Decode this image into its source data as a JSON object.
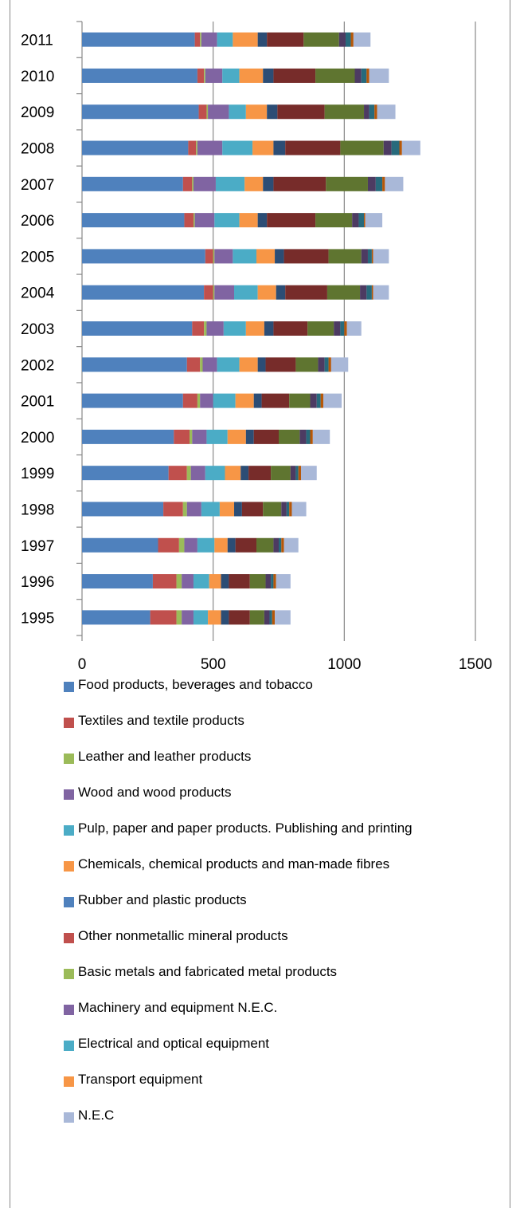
{
  "chart_data": {
    "type": "bar",
    "orientation": "horizontal",
    "stacked": true,
    "categories": [
      "2011",
      "2010",
      "2009",
      "2008",
      "2007",
      "2006",
      "2005",
      "2004",
      "2003",
      "2002",
      "2001",
      "2000",
      "1999",
      "1998",
      "1997",
      "1996",
      "1995"
    ],
    "xlim": [
      0,
      1500
    ],
    "xticks": [
      "0",
      "500",
      "1000",
      "1500"
    ],
    "grid": "vertical",
    "legend": "bottom",
    "series": [
      {
        "name": "Food products, beverages and tobacco",
        "color": "#4F81BD",
        "values": [
          430,
          440,
          445,
          405,
          385,
          390,
          470,
          465,
          420,
          400,
          385,
          350,
          330,
          310,
          290,
          270,
          260
        ]
      },
      {
        "name": "Textiles and textile products",
        "color": "#C0504D",
        "values": [
          20,
          25,
          30,
          30,
          35,
          35,
          30,
          35,
          45,
          50,
          55,
          60,
          70,
          75,
          80,
          90,
          100
        ]
      },
      {
        "name": "Leather and leather products",
        "color": "#9BBB59",
        "values": [
          5,
          5,
          5,
          5,
          5,
          5,
          5,
          5,
          10,
          10,
          10,
          10,
          15,
          15,
          20,
          20,
          20
        ]
      },
      {
        "name": "Wood and wood products",
        "color": "#8064A2",
        "values": [
          60,
          65,
          80,
          95,
          85,
          75,
          70,
          75,
          65,
          55,
          50,
          55,
          55,
          55,
          50,
          45,
          45
        ]
      },
      {
        "name": "Pulp, paper and paper products. Publishing and printing",
        "color": "#4BACC6",
        "values": [
          60,
          65,
          65,
          115,
          110,
          95,
          90,
          90,
          85,
          85,
          85,
          80,
          75,
          70,
          65,
          60,
          55
        ]
      },
      {
        "name": "Chemicals, chemical products and man-made fibres",
        "color": "#F79646",
        "values": [
          95,
          90,
          80,
          80,
          70,
          70,
          70,
          70,
          70,
          70,
          70,
          70,
          60,
          55,
          50,
          45,
          50
        ]
      },
      {
        "name": "Rubber and plastic products",
        "color": "#2C4D75",
        "values": [
          35,
          40,
          40,
          45,
          40,
          35,
          35,
          35,
          35,
          30,
          30,
          30,
          30,
          30,
          30,
          30,
          30
        ]
      },
      {
        "name": "Other nonmetallic mineral products",
        "color": "#772C2A",
        "values": [
          140,
          160,
          180,
          210,
          200,
          185,
          170,
          160,
          130,
          115,
          105,
          95,
          85,
          80,
          80,
          80,
          80
        ]
      },
      {
        "name": "Basic metals and fabricated metal products",
        "color": "#5F7530",
        "values": [
          135,
          150,
          150,
          165,
          160,
          140,
          125,
          125,
          100,
          85,
          80,
          80,
          75,
          70,
          65,
          60,
          55
        ]
      },
      {
        "name": "Machinery and equipment N.E.C.",
        "color": "#4D3B62",
        "values": [
          25,
          25,
          20,
          30,
          30,
          25,
          25,
          25,
          25,
          25,
          25,
          25,
          20,
          20,
          20,
          20,
          20
        ]
      },
      {
        "name": "Electrical and optical equipment",
        "color": "#276A7C",
        "values": [
          20,
          20,
          20,
          30,
          25,
          20,
          15,
          20,
          15,
          15,
          15,
          15,
          10,
          10,
          10,
          10,
          10
        ]
      },
      {
        "name": "Transport equipment",
        "color": "#B65708",
        "values": [
          10,
          10,
          10,
          10,
          10,
          5,
          5,
          5,
          10,
          10,
          10,
          10,
          10,
          10,
          10,
          10,
          10
        ]
      },
      {
        "name": "N.E.C",
        "color": "#A9B8D8",
        "values": [
          65,
          75,
          70,
          70,
          70,
          65,
          60,
          60,
          55,
          65,
          70,
          65,
          60,
          55,
          55,
          55,
          60
        ]
      }
    ]
  },
  "legend_colors": [
    "#4F81BD",
    "#C0504D",
    "#9BBB59",
    "#8064A2",
    "#4BACC6",
    "#F79646",
    "#4F81BD",
    "#C0504D",
    "#9BBB59",
    "#8064A2",
    "#4BACC6",
    "#F79646",
    "#A9B8D8"
  ]
}
